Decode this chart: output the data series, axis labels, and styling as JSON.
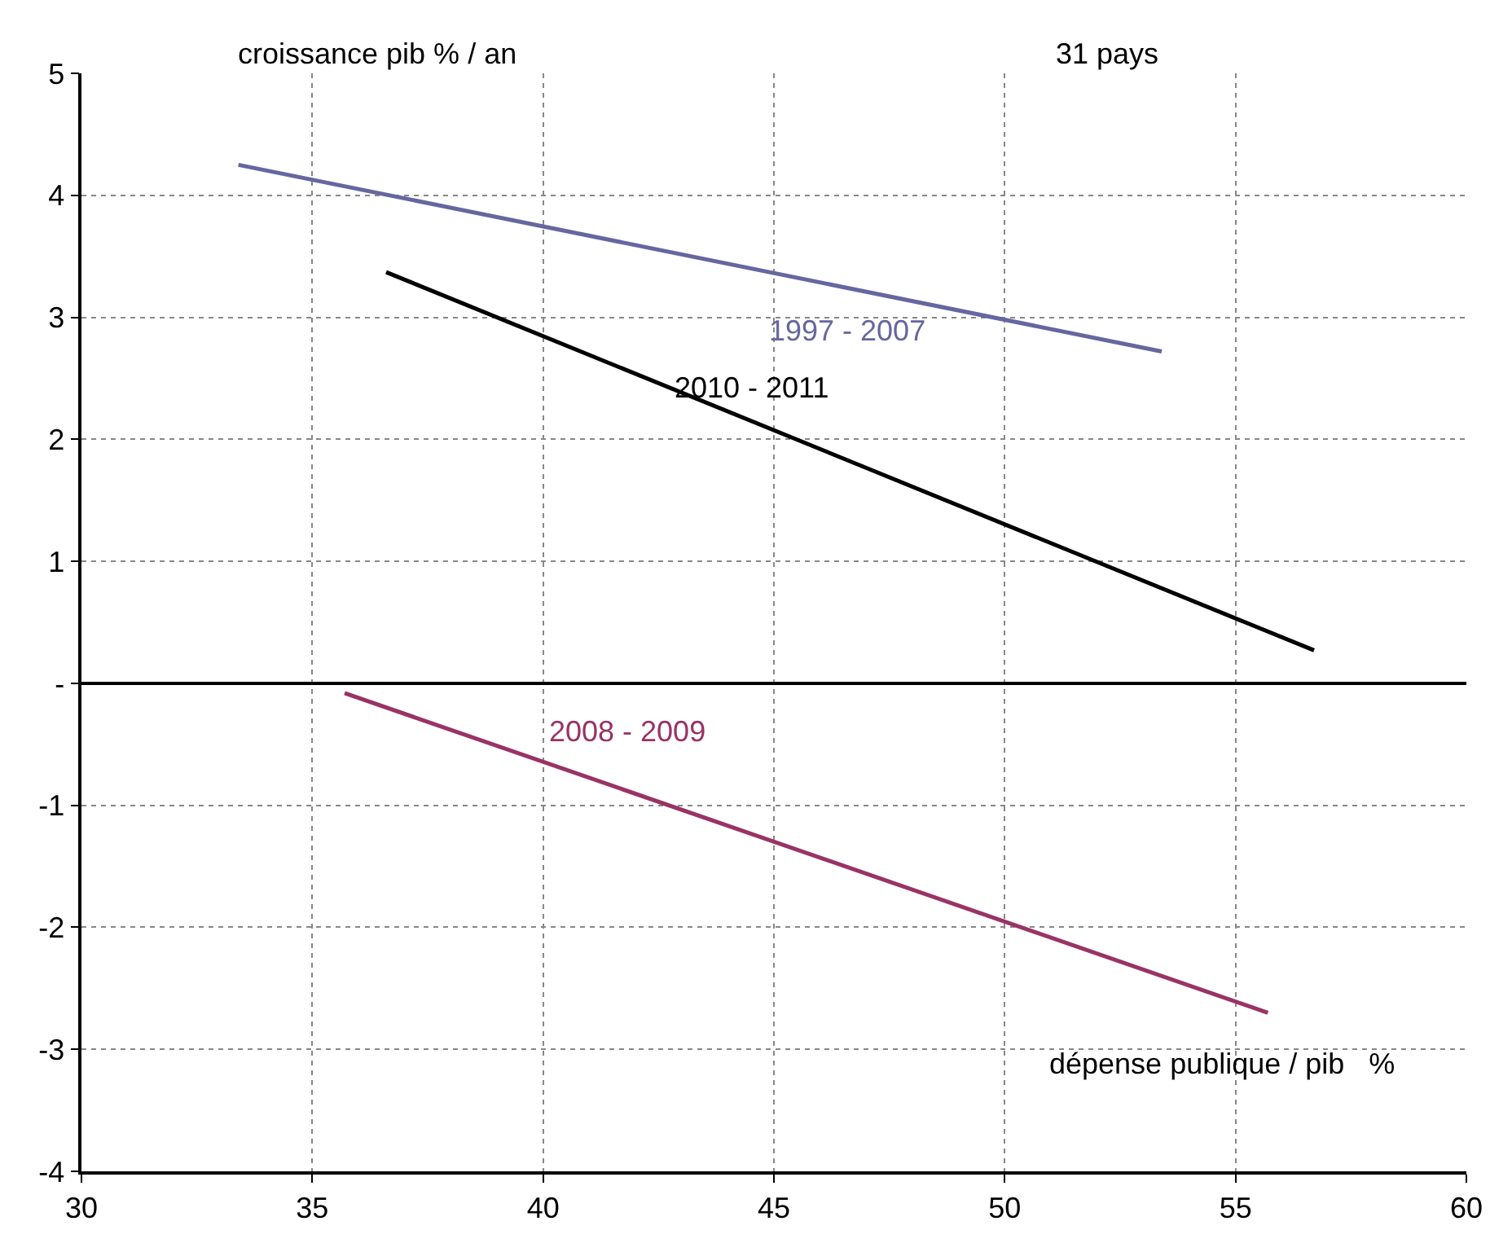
{
  "chart_data": {
    "type": "line",
    "ylabel": "croissance pib % / an",
    "xlabel": "dépense publique / pib   %",
    "annotations": [
      "31 pays"
    ],
    "xlim": [
      30,
      60
    ],
    "xticks": [
      30,
      35,
      40,
      45,
      50,
      55,
      60
    ],
    "ylim": [
      -4,
      5
    ],
    "yticks": [
      -4,
      -3,
      -2,
      -1,
      {
        "value": 0,
        "label": "-"
      },
      1,
      2,
      3,
      4,
      5
    ],
    "grid": true,
    "legend": false,
    "marker": "none",
    "line_style": "solid",
    "series": [
      {
        "name": "1997 - 2007",
        "color": "#6666a0",
        "x": [
          33.4,
          53.4
        ],
        "values": [
          4.25,
          2.72
        ]
      },
      {
        "name": "2010 - 2011",
        "color": "#000000",
        "x": [
          36.6,
          56.7
        ],
        "values": [
          3.37,
          0.27
        ]
      },
      {
        "name": "2008 - 2009",
        "color": "#993366",
        "x": [
          35.7,
          55.7
        ],
        "values": [
          -0.08,
          -2.7
        ]
      }
    ]
  }
}
